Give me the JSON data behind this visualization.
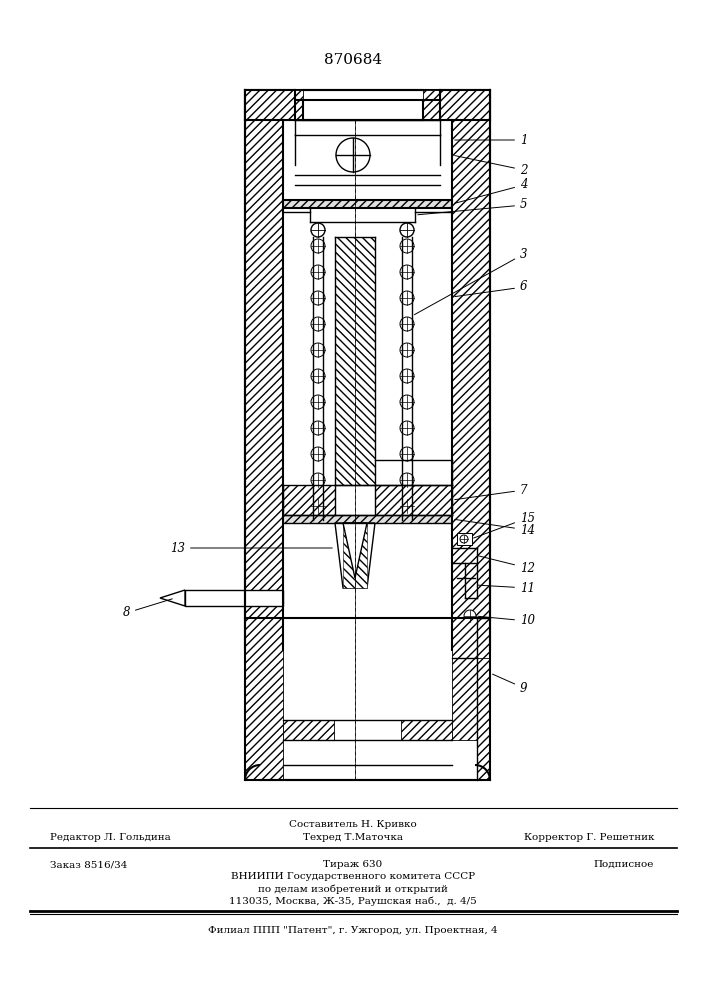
{
  "patent_number": "870684",
  "footer": {
    "line1_center_top": "Составитель Н. Кривко",
    "line1_left": "Редактор Л. Гольдина",
    "line1_center_bot": "Техред Т.Маточка",
    "line1_right": "Корректор Г. Решетник",
    "line2_left": "Заказ 8516/34",
    "line2_center": "Тираж 630",
    "line2_right": "Подписное",
    "line3": "ВНИИПИ Государственного комитета СССР",
    "line4": "по делам изобретений и открытий",
    "line5": "113035, Москва, Ж-35, Раушская наб.,  д. 4/5",
    "line6": "Филиал ППП \"Патент\", г. Ужгород, ул. Проектная, 4"
  },
  "bg_color": "#ffffff"
}
